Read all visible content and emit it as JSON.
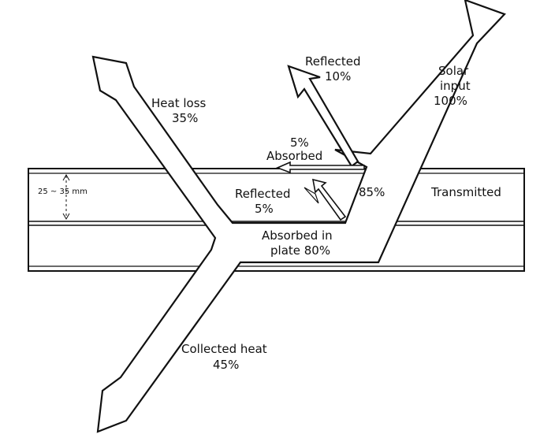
{
  "labels": {
    "reflected_top": "Reflected",
    "reflected_top_pct": "10%",
    "solar_input_1": "Solar",
    "solar_input_2": "input",
    "solar_input_pct": "100%",
    "heat_loss": "Heat loss",
    "heat_loss_pct": "35%",
    "absorbed_pct": "5%",
    "absorbed": "Absorbed",
    "gap": "25 ~ 35 mm",
    "reflected_mid": "Reflected",
    "reflected_mid_pct": "5%",
    "transmitted_pct": "85%",
    "transmitted": "Transmitted",
    "absorbed_plate_1": "Absorbed in",
    "absorbed_plate_2": "plate 80%",
    "collected_heat": "Collected heat",
    "collected_heat_pct": "45%"
  }
}
